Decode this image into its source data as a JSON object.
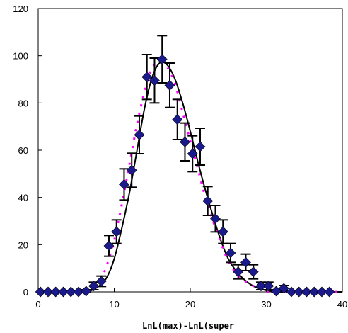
{
  "chart_data": {
    "type": "scatter",
    "xlabel": "LnL(max)-LnL(super",
    "ylabel": "",
    "xlim": [
      0,
      40
    ],
    "ylim": [
      0,
      120
    ],
    "x_ticks": [
      "0",
      "10",
      "20",
      "30",
      "40"
    ],
    "y_ticks": [
      "0",
      "20",
      "40",
      "60",
      "80",
      "100",
      "120"
    ],
    "grid": false,
    "legend": "none",
    "colors": {
      "markers": "#1a1a8c",
      "fit_line": "#000000",
      "expected_dashes": "#ff00ff",
      "error_bars": "#000000"
    },
    "series": [
      {
        "marker": "diamond",
        "points": [
          {
            "x": 0.3,
            "y": 0,
            "err": 0
          },
          {
            "x": 1.3,
            "y": 0,
            "err": 0
          },
          {
            "x": 2.3,
            "y": 0,
            "err": 0
          },
          {
            "x": 3.3,
            "y": 0,
            "err": 0
          },
          {
            "x": 4.3,
            "y": 0,
            "err": 0
          },
          {
            "x": 5.3,
            "y": 0,
            "err": 0
          },
          {
            "x": 6.3,
            "y": 0.3,
            "err": 0.6
          },
          {
            "x": 7.3,
            "y": 2.5,
            "err": 1.6
          },
          {
            "x": 8.3,
            "y": 4.5,
            "err": 2.2
          },
          {
            "x": 9.3,
            "y": 19.5,
            "err": 4.4
          },
          {
            "x": 10.3,
            "y": 25.5,
            "err": 5.0
          },
          {
            "x": 11.3,
            "y": 45.5,
            "err": 6.6
          },
          {
            "x": 12.3,
            "y": 51.5,
            "err": 7.2
          },
          {
            "x": 13.3,
            "y": 66.5,
            "err": 8.0
          },
          {
            "x": 14.3,
            "y": 91.0,
            "err": 9.5
          },
          {
            "x": 15.3,
            "y": 89.5,
            "err": 9.5
          },
          {
            "x": 16.3,
            "y": 98.5,
            "err": 10.0
          },
          {
            "x": 17.3,
            "y": 87.5,
            "err": 9.4
          },
          {
            "x": 18.3,
            "y": 73.0,
            "err": 8.5
          },
          {
            "x": 19.3,
            "y": 63.5,
            "err": 8.0
          },
          {
            "x": 20.3,
            "y": 58.5,
            "err": 7.6
          },
          {
            "x": 21.3,
            "y": 61.5,
            "err": 7.8
          },
          {
            "x": 22.3,
            "y": 38.5,
            "err": 6.1
          },
          {
            "x": 23.3,
            "y": 31.0,
            "err": 5.6
          },
          {
            "x": 24.3,
            "y": 25.5,
            "err": 5.0
          },
          {
            "x": 25.3,
            "y": 16.5,
            "err": 4.0
          },
          {
            "x": 26.3,
            "y": 8.5,
            "err": 3.0
          },
          {
            "x": 27.3,
            "y": 12.5,
            "err": 3.5
          },
          {
            "x": 28.3,
            "y": 8.5,
            "err": 3.0
          },
          {
            "x": 29.3,
            "y": 2.5,
            "err": 1.6
          },
          {
            "x": 30.3,
            "y": 2.5,
            "err": 1.6
          },
          {
            "x": 31.3,
            "y": 0.3,
            "err": 0.6
          },
          {
            "x": 32.3,
            "y": 1.5,
            "err": 1.2
          },
          {
            "x": 33.3,
            "y": 0,
            "err": 0
          },
          {
            "x": 34.3,
            "y": 0,
            "err": 0
          },
          {
            "x": 35.3,
            "y": 0,
            "err": 0
          },
          {
            "x": 36.3,
            "y": 0,
            "err": 0
          },
          {
            "x": 37.3,
            "y": 0,
            "err": 0
          },
          {
            "x": 38.3,
            "y": 0,
            "err": 0
          }
        ]
      },
      {
        "style": "smooth-line",
        "points": [
          [
            0,
            0
          ],
          [
            6,
            0
          ],
          [
            7,
            0.6
          ],
          [
            8,
            2.5
          ],
          [
            9,
            6
          ],
          [
            10,
            14
          ],
          [
            11,
            27
          ],
          [
            12,
            42
          ],
          [
            13,
            60
          ],
          [
            14,
            78
          ],
          [
            15,
            91
          ],
          [
            16,
            97
          ],
          [
            17,
            96
          ],
          [
            18,
            90
          ],
          [
            19,
            80
          ],
          [
            20,
            68
          ],
          [
            21,
            55
          ],
          [
            22,
            43
          ],
          [
            23,
            32
          ],
          [
            24,
            22
          ],
          [
            25,
            14
          ],
          [
            26,
            9
          ],
          [
            27,
            5.5
          ],
          [
            28,
            3
          ],
          [
            29,
            1.5
          ],
          [
            30,
            0.6
          ],
          [
            31,
            0.2
          ],
          [
            32,
            0
          ],
          [
            40,
            0
          ]
        ]
      },
      {
        "style": "dashed",
        "points": [
          [
            0,
            0
          ],
          [
            6,
            0
          ],
          [
            7,
            1
          ],
          [
            8,
            3.5
          ],
          [
            9,
            11
          ],
          [
            10,
            22
          ],
          [
            11,
            37
          ],
          [
            12,
            54
          ],
          [
            13,
            71
          ],
          [
            14,
            85
          ],
          [
            15,
            95
          ],
          [
            16,
            97
          ],
          [
            17,
            95
          ],
          [
            18,
            88
          ],
          [
            19,
            76
          ],
          [
            20,
            64
          ],
          [
            21,
            52
          ],
          [
            22,
            40
          ],
          [
            23,
            30
          ],
          [
            24,
            21
          ],
          [
            25,
            13
          ],
          [
            26,
            8
          ],
          [
            27,
            5
          ],
          [
            28,
            3
          ],
          [
            29,
            1.5
          ],
          [
            30,
            0.5
          ],
          [
            31,
            0
          ],
          [
            40,
            0
          ]
        ]
      }
    ]
  }
}
